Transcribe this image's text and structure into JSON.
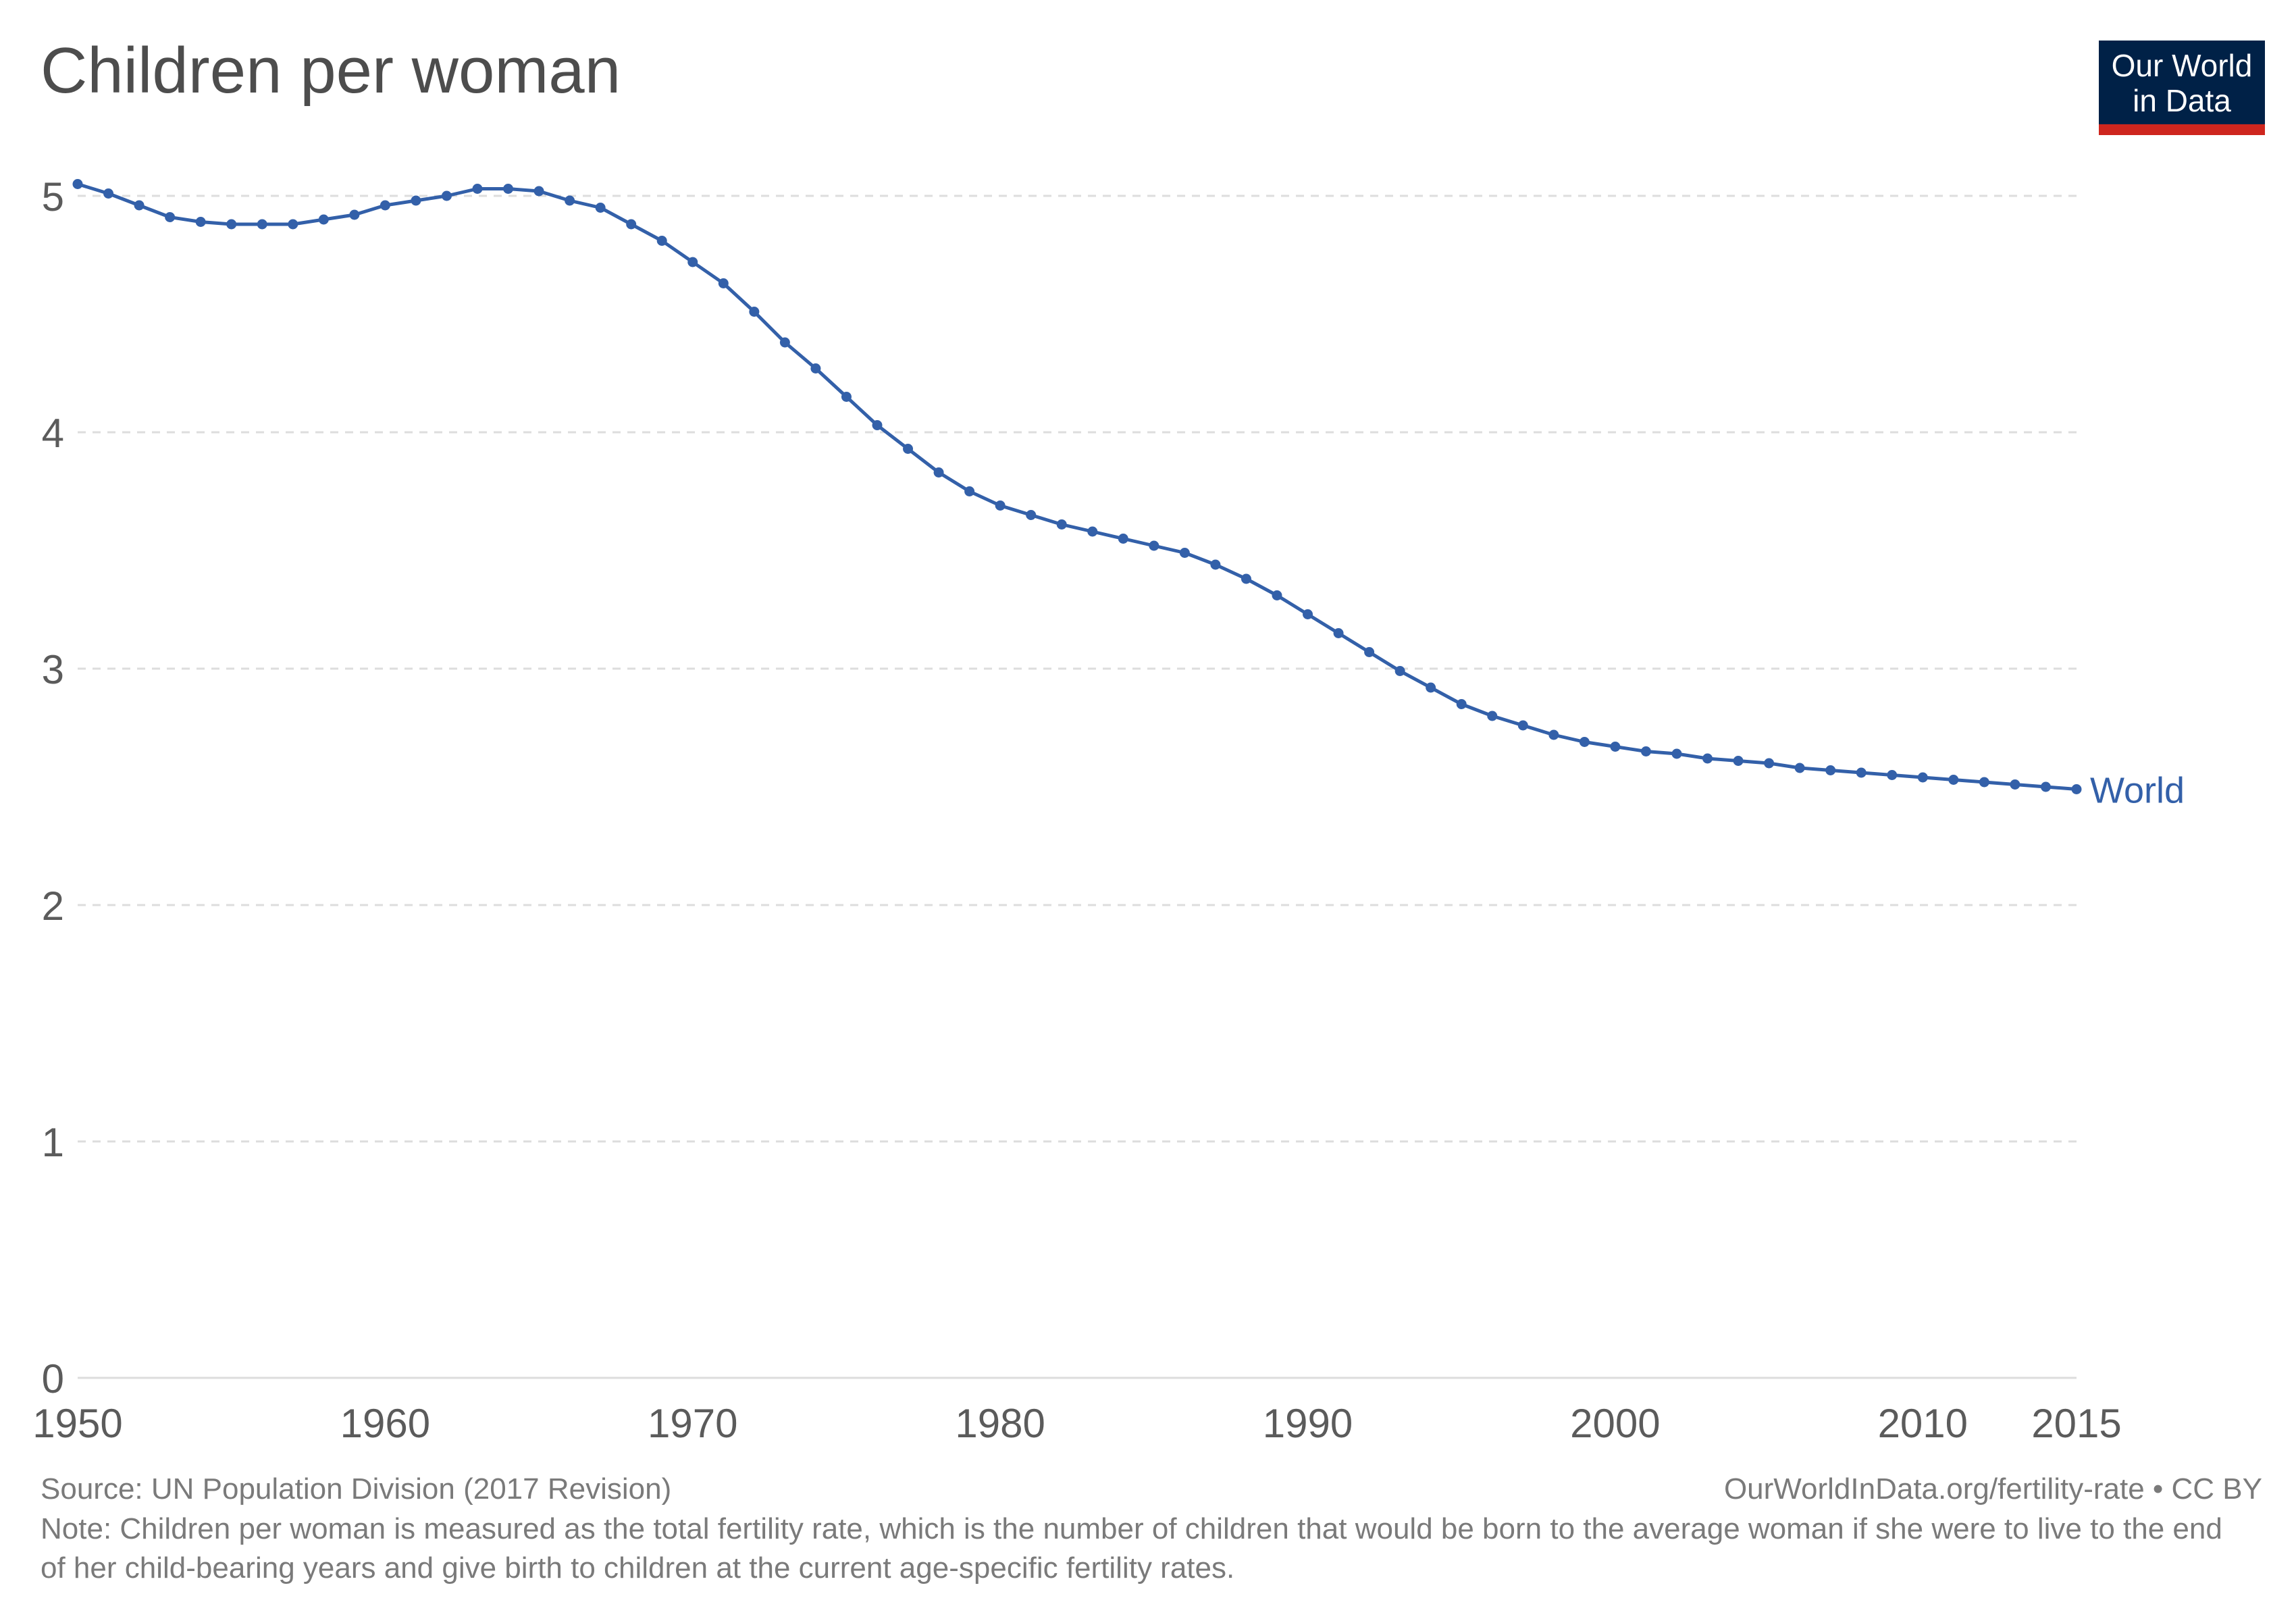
{
  "header": {
    "title": "Children per woman",
    "logo_line1": "Our World",
    "logo_line2": "in Data"
  },
  "footer": {
    "source": "Source: UN Population Division (2017 Revision)",
    "url": "OurWorldInData.org/fertility-rate • CC BY",
    "note": "Note: Children per woman is measured as the total fertility rate, which is the number of children that would be born to the average woman if she were to live to the end of her child-bearing years and give birth to children at the current age-specific fertility rates."
  },
  "colors": {
    "series": "#3360a9",
    "grid": "#dddddd",
    "axis_text": "#5b5b5b",
    "logo_bg": "#002147",
    "logo_bar": "#ce261e"
  },
  "chart_data": {
    "type": "line",
    "title": "Children per woman",
    "xlabel": "",
    "ylabel": "",
    "xlim": [
      1950,
      2015
    ],
    "ylim": [
      0,
      5
    ],
    "grid": "horizontal-dashed",
    "x_ticks": [
      "1950",
      "1960",
      "1970",
      "1980",
      "1990",
      "2000",
      "2010",
      "2015"
    ],
    "y_ticks": [
      "0",
      "1",
      "2",
      "3",
      "4",
      "5"
    ],
    "x": [
      1950,
      1951,
      1952,
      1953,
      1954,
      1955,
      1956,
      1957,
      1958,
      1959,
      1960,
      1961,
      1962,
      1963,
      1964,
      1965,
      1966,
      1967,
      1968,
      1969,
      1970,
      1971,
      1972,
      1973,
      1974,
      1975,
      1976,
      1977,
      1978,
      1979,
      1980,
      1981,
      1982,
      1983,
      1984,
      1985,
      1986,
      1987,
      1988,
      1989,
      1990,
      1991,
      1992,
      1993,
      1994,
      1995,
      1996,
      1997,
      1998,
      1999,
      2000,
      2001,
      2002,
      2003,
      2004,
      2005,
      2006,
      2007,
      2008,
      2009,
      2010,
      2011,
      2012,
      2013,
      2014,
      2015
    ],
    "series": [
      {
        "name": "World",
        "values": [
          5.05,
          5.01,
          4.96,
          4.91,
          4.89,
          4.88,
          4.88,
          4.88,
          4.9,
          4.92,
          4.96,
          4.98,
          5.0,
          5.03,
          5.03,
          5.02,
          4.98,
          4.95,
          4.88,
          4.81,
          4.72,
          4.63,
          4.51,
          4.38,
          4.27,
          4.15,
          4.03,
          3.93,
          3.83,
          3.75,
          3.69,
          3.65,
          3.61,
          3.58,
          3.55,
          3.52,
          3.49,
          3.44,
          3.38,
          3.31,
          3.23,
          3.15,
          3.07,
          2.99,
          2.92,
          2.85,
          2.8,
          2.76,
          2.72,
          2.69,
          2.67,
          2.65,
          2.64,
          2.62,
          2.61,
          2.6,
          2.58,
          2.57,
          2.56,
          2.55,
          2.54,
          2.53,
          2.52,
          2.51,
          2.5,
          2.49
        ]
      }
    ]
  }
}
